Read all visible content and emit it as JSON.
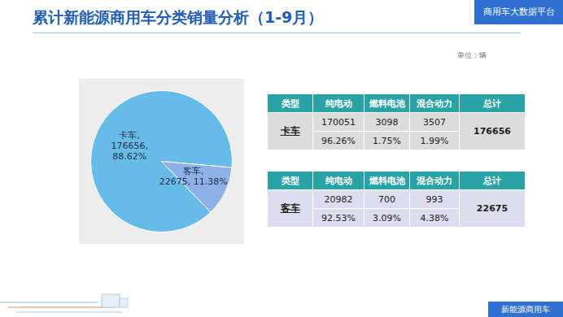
{
  "header": {
    "title": "累计新能源商用车分类销量分析（1-9月）",
    "badge": "商用车大数据平台"
  },
  "unit": "单位：辆",
  "chart_data": {
    "type": "pie",
    "categories": [
      "卡车",
      "客车"
    ],
    "values": [
      176656,
      22675
    ],
    "value_labels": [
      [
        "卡车,",
        "176656,",
        "88.62%"
      ],
      [
        "客车,",
        "22675, 11.38%"
      ]
    ],
    "colors": [
      "#66bbe9",
      "#8fb1ea"
    ],
    "data_labels": true
  },
  "tables": [
    {
      "columns": [
        "类型",
        "纯电动",
        "燃料电池",
        "混合动力",
        "总计"
      ],
      "name": "卡车",
      "rows": [
        [
          "170051",
          "3098",
          "3507"
        ],
        [
          "96.26%",
          "1.75%",
          "1.99%"
        ]
      ],
      "total": "176656",
      "color": "#dcdcdc"
    },
    {
      "columns": [
        "类型",
        "纯电动",
        "燃料电池",
        "混合动力",
        "总计"
      ],
      "name": "客车",
      "rows": [
        [
          "20982",
          "700",
          "993"
        ],
        [
          "92.53%",
          "3.09%",
          "4.38%"
        ]
      ],
      "total": "22675",
      "color": "#dedcef"
    }
  ],
  "footer": "新能源商用车"
}
